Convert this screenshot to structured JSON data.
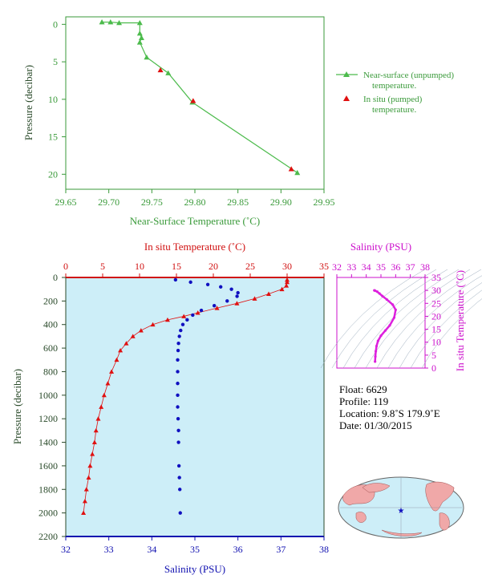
{
  "chart_data": [
    {
      "type": "line",
      "xlabel": "Near-Surface Temperature (˚C)",
      "ylabel": "Pressure (decibar)",
      "xlim": [
        29.65,
        29.95
      ],
      "ylim": [
        22,
        -1
      ],
      "xticks": [
        "29.65",
        "29.70",
        "29.75",
        "29.80",
        "29.85",
        "29.90",
        "29.95"
      ],
      "yticks": [
        "0",
        "5",
        "10",
        "15",
        "20"
      ],
      "grid": false,
      "legend_position": "right",
      "series": [
        {
          "name": "Near-surface (unpumped) temperature.",
          "color": "#4cbb4c",
          "marker": "triangle",
          "x": [
            29.692,
            29.702,
            29.712,
            29.736,
            29.736,
            29.738,
            29.736,
            29.744,
            29.769,
            29.797,
            29.919
          ],
          "y": [
            -0.3,
            -0.3,
            -0.2,
            -0.2,
            1.2,
            1.8,
            2.4,
            4.4,
            6.5,
            10.4,
            19.8
          ]
        },
        {
          "name": "In situ (pumped) temperature.",
          "color": "#e01010",
          "marker": "triangle",
          "x": [
            29.76,
            29.798,
            29.912
          ],
          "y": [
            6.1,
            10.2,
            19.3
          ]
        }
      ]
    },
    {
      "type": "line",
      "ylabel": "Pressure (decibar)",
      "ylim": [
        2200,
        0
      ],
      "yticks": [
        "0",
        "200",
        "400",
        "600",
        "800",
        "1000",
        "1200",
        "1400",
        "1600",
        "1800",
        "2000",
        "2200"
      ],
      "top_axis": {
        "label": "In situ Temperature (˚C)",
        "lim": [
          0,
          35
        ],
        "ticks": [
          "0",
          "5",
          "10",
          "15",
          "20",
          "25",
          "30",
          "35"
        ],
        "color": "#d01010"
      },
      "bottom_axis": {
        "label": "Salinity (PSU)",
        "lim": [
          32,
          38
        ],
        "ticks": [
          "32",
          "33",
          "34",
          "35",
          "36",
          "37",
          "38"
        ],
        "color": "#1010b0"
      },
      "background": "#cdeef8",
      "series": [
        {
          "axis": "top",
          "color": "#e01010",
          "marker": "triangle",
          "x": [
            30.0,
            30.0,
            29.9,
            29.3,
            27.5,
            25.6,
            23.2,
            20.5,
            17.9,
            16.0,
            13.8,
            11.8,
            10.2,
            9.1,
            8.2,
            7.4,
            6.9,
            6.2,
            5.7,
            5.2,
            4.8,
            4.4,
            4.1,
            3.9,
            3.6,
            3.3,
            3.1,
            2.8,
            2.6,
            2.4
          ],
          "y": [
            20,
            40,
            70,
            100,
            140,
            180,
            220,
            260,
            300,
            330,
            360,
            400,
            450,
            500,
            560,
            620,
            700,
            800,
            900,
            1000,
            1100,
            1200,
            1300,
            1400,
            1500,
            1600,
            1700,
            1800,
            1900,
            2000
          ]
        },
        {
          "axis": "bottom",
          "color": "#1010c0",
          "marker": "circle",
          "x": [
            34.55,
            34.9,
            35.3,
            35.6,
            35.85,
            36.0,
            35.98,
            35.75,
            35.45,
            35.15,
            34.95,
            34.82,
            34.72,
            34.67,
            34.64,
            34.62,
            34.61,
            34.6,
            34.6,
            34.6,
            34.6,
            34.6,
            34.61,
            34.62,
            34.62,
            34.63,
            34.64,
            34.65,
            34.66
          ],
          "y": [
            20,
            40,
            60,
            80,
            100,
            130,
            160,
            200,
            240,
            280,
            320,
            360,
            400,
            450,
            500,
            560,
            620,
            700,
            800,
            900,
            1000,
            1100,
            1200,
            1300,
            1400,
            1600,
            1700,
            1800,
            2000
          ]
        }
      ]
    },
    {
      "type": "scatter",
      "xlabel": "Salinity (PSU)",
      "ylabel": "In situ Temperature (˚C)",
      "xlim": [
        32,
        38
      ],
      "ylim": [
        0,
        35
      ],
      "xticks": [
        "32",
        "33",
        "34",
        "35",
        "36",
        "37",
        "38"
      ],
      "yticks": [
        "0",
        "5",
        "10",
        "15",
        "20",
        "25",
        "30",
        "35"
      ],
      "color": "#cc10cc",
      "series": [
        {
          "color": "#dd20dd",
          "x": [
            34.6,
            34.62,
            34.65,
            34.7,
            34.8,
            35.0,
            35.3,
            35.6,
            35.9,
            36.0,
            35.8,
            35.4,
            35.1,
            34.9,
            34.75,
            34.6,
            34.55
          ],
          "y": [
            2.5,
            4.5,
            6.5,
            8.5,
            10.5,
            12.5,
            14.5,
            16.5,
            19.5,
            22.5,
            24.5,
            26.5,
            27.8,
            28.8,
            29.5,
            29.9,
            30.0
          ]
        }
      ]
    }
  ],
  "legend": {
    "near_surface": "Near-surface (unpumped)",
    "near_surface_2": "temperature.",
    "in_situ": "In situ (pumped)",
    "in_situ_2": "temperature."
  },
  "info": {
    "float": "Float: 6629",
    "profile": "Profile: 119",
    "location": "Location: 9.8˚S 179.9˚E",
    "date": "Date: 01/30/2015"
  },
  "colors": {
    "green": "#4cbb4c",
    "red": "#e01010",
    "blue": "#1010c0",
    "magenta": "#cc10cc",
    "panel_bg": "#cdeef8",
    "map_land": "#f0a8a8",
    "map_ocean": "#cdeef8"
  }
}
